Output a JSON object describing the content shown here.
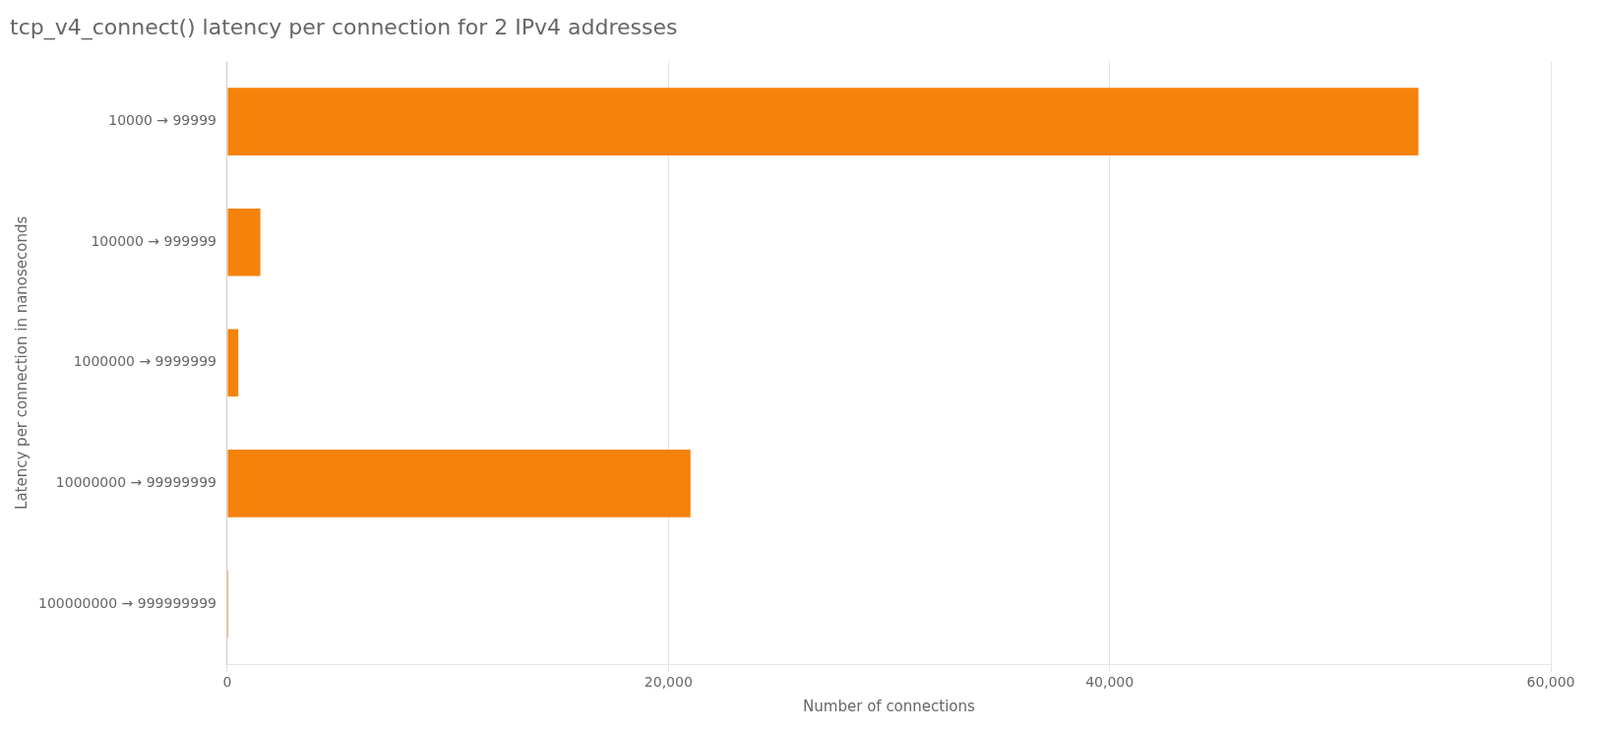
{
  "chart_data": {
    "type": "bar",
    "orientation": "horizontal",
    "title": "tcp_v4_connect() latency per connection for 2 IPv4 addresses",
    "categories": [
      "10000 → 99999",
      "100000 → 999999",
      "1000000 → 9999999",
      "10000000 → 99999999",
      "100000000 → 999999999"
    ],
    "values": [
      54000,
      1500,
      500,
      21000,
      50
    ],
    "color": "#f5820a",
    "xlabel": "Number of connections",
    "ylabel": "Latency per connection in nanoseconds",
    "xlim": [
      0,
      60000
    ],
    "xticks": [
      0,
      {
        "value": 20000,
        "label": "20,000"
      },
      {
        "value": 40000,
        "label": "40,000"
      },
      {
        "value": 60000,
        "label": "60,000"
      }
    ],
    "grid": true
  }
}
